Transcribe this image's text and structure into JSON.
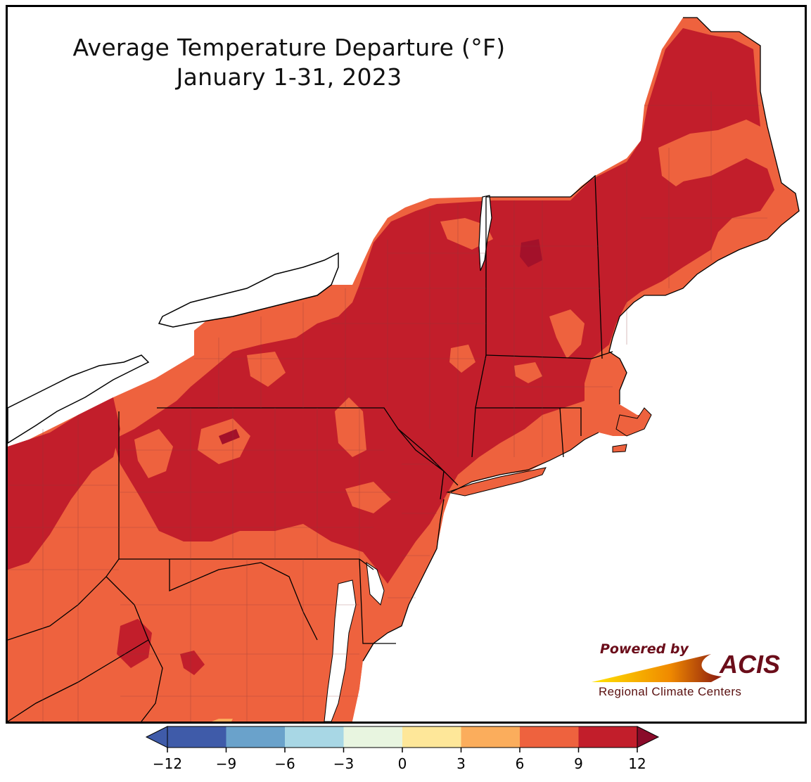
{
  "title": {
    "line1": "Average Temperature Departure (°F)",
    "line2": "January 1-31, 2023"
  },
  "logo": {
    "powered_by": "Powered by",
    "brand": "ACIS",
    "org": "Regional Climate Centers"
  },
  "legend": {
    "ticks": [
      "−12",
      "−9",
      "−6",
      "−3",
      "0",
      "3",
      "6",
      "9",
      "12"
    ],
    "bins": [
      {
        "range": [
          -12,
          -9
        ],
        "color": "#3f5ba9"
      },
      {
        "range": [
          -9,
          -6
        ],
        "color": "#6aa2cb"
      },
      {
        "range": [
          -6,
          -3
        ],
        "color": "#a8d7e5"
      },
      {
        "range": [
          -3,
          0
        ],
        "color": "#e8f5e0"
      },
      {
        "range": [
          0,
          3
        ],
        "color": "#fee799"
      },
      {
        "range": [
          3,
          6
        ],
        "color": "#fbad5c"
      },
      {
        "range": [
          6,
          9
        ],
        "color": "#ee623e"
      },
      {
        "range": [
          9,
          12
        ],
        "color": "#c21e2b"
      }
    ],
    "under_color": "#3f5ba9",
    "over_color": "#8a0b2a"
  },
  "map": {
    "region": "Northeast United States",
    "dominant_bins": [
      "6 to 9",
      "9 to 12"
    ],
    "colors": {
      "warm": "#ee623e",
      "hot": "#c21e2b",
      "extreme": "#a3112a",
      "mild": "#fbad5c",
      "water": "#ffffff",
      "state_border": "#000000",
      "county_border": "#8a3a3a"
    }
  }
}
